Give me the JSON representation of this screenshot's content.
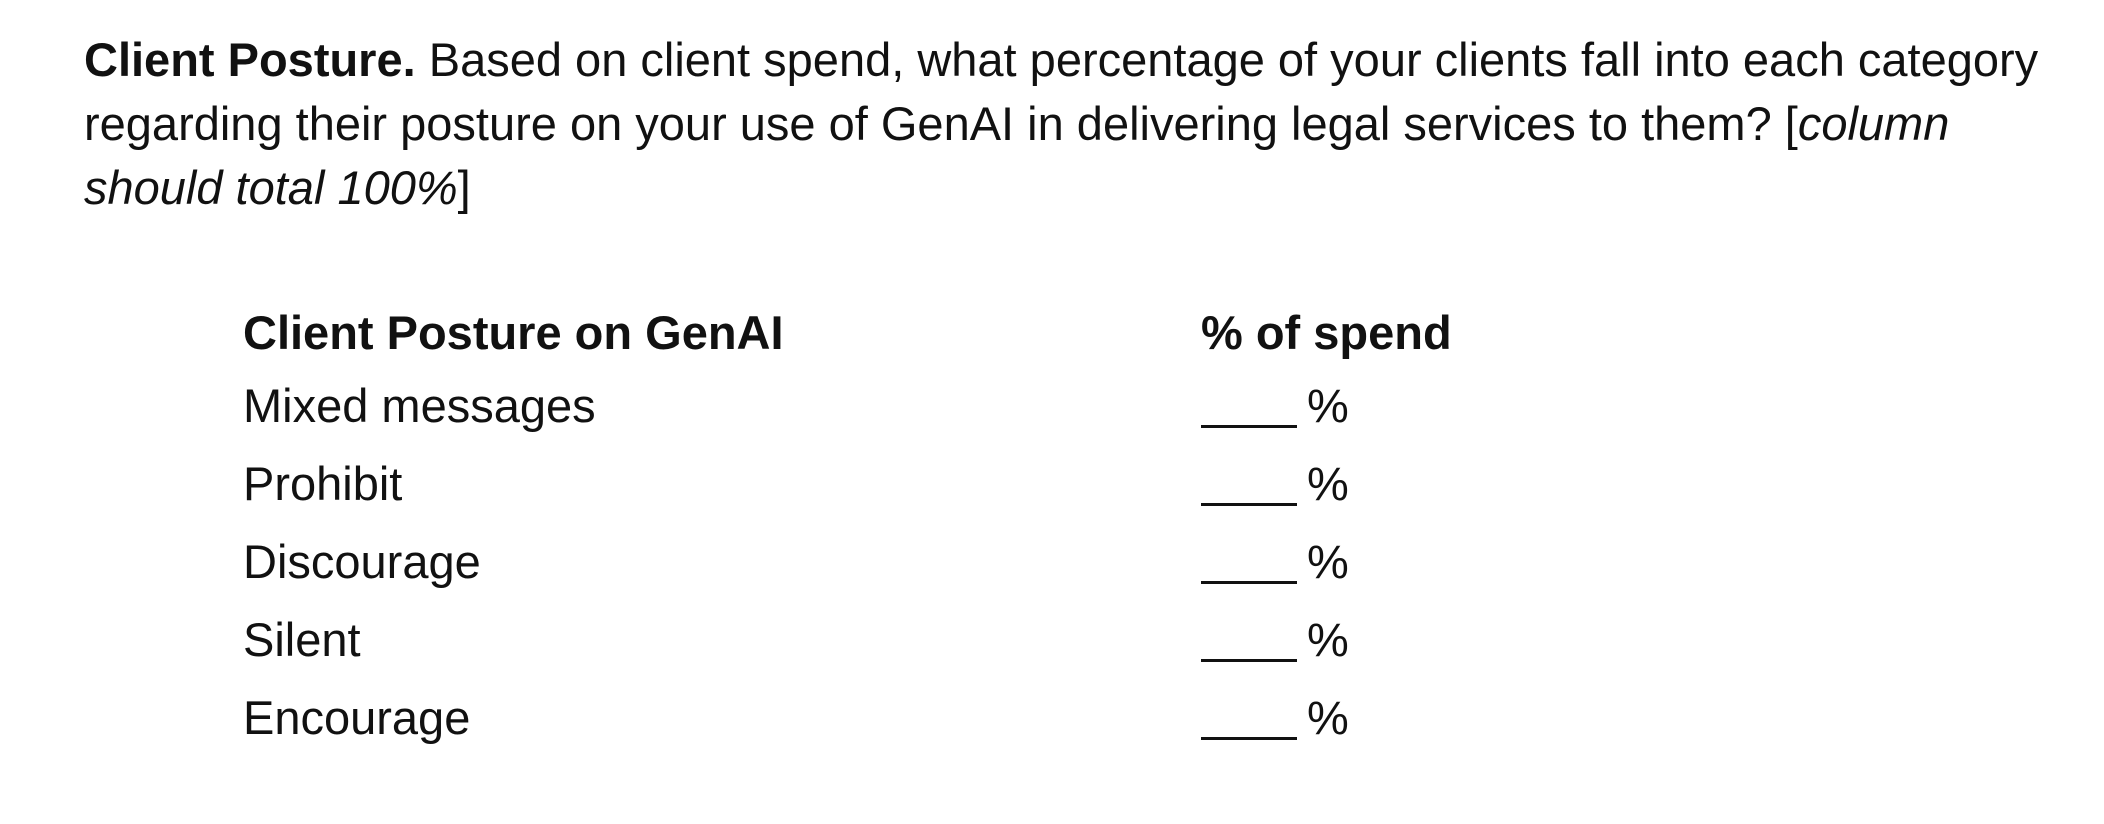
{
  "question": {
    "lead": "Client Posture.",
    "text": " Based on client spend, what percentage of your clients fall into each category regarding their posture on your use of GenAI in delivering legal services to them? [",
    "instruction": "column should total 100%",
    "closing": "]"
  },
  "table": {
    "headers": {
      "posture": "Client Posture on GenAI",
      "spend": "% of spend"
    },
    "rows": [
      {
        "posture": "Mixed messages",
        "blank": "",
        "unit": "%"
      },
      {
        "posture": "Prohibit",
        "blank": "",
        "unit": "%"
      },
      {
        "posture": "Discourage",
        "blank": "",
        "unit": "%"
      },
      {
        "posture": "Silent",
        "blank": "",
        "unit": "%"
      },
      {
        "posture": "Encourage",
        "blank": "",
        "unit": "%"
      }
    ]
  }
}
